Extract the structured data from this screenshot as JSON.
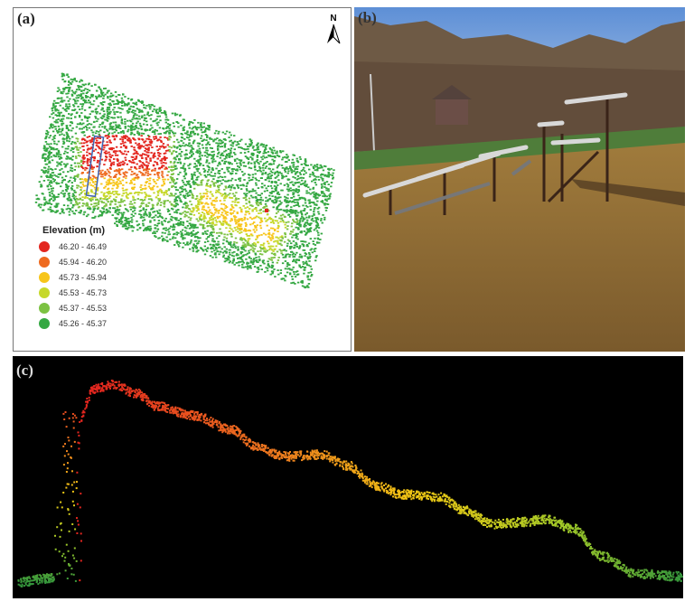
{
  "panels": {
    "a": {
      "label": "(a)",
      "north_label": "N"
    },
    "b": {
      "label": "(b)"
    },
    "c": {
      "label": "(c)"
    }
  },
  "legend": {
    "title": "Elevation (m)",
    "items": [
      {
        "label": "46.20 - 46.49",
        "color": "#e3261f"
      },
      {
        "label": "45.94 - 46.20",
        "color": "#ee6a1f"
      },
      {
        "label": "45.73 - 45.94",
        "color": "#f7c51a"
      },
      {
        "label": "45.53 - 45.73",
        "color": "#c6d82a"
      },
      {
        "label": "45.37 - 45.53",
        "color": "#7cc242"
      },
      {
        "label": "45.26 - 45.37",
        "color": "#35a843"
      }
    ]
  },
  "colors": {
    "profile_background": "#000000",
    "transect_box": "#3f63b0"
  }
}
